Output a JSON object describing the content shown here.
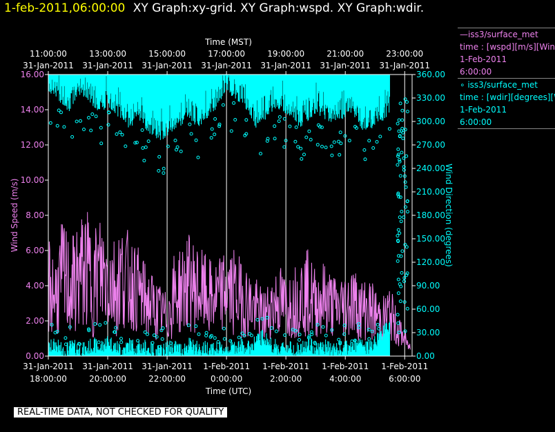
{
  "header": {
    "datetime": "1-feb-2011,06:00:00",
    "graphs": "XY Graph:xy-grid.  XY Graph:wspd.  XY Graph:wdir."
  },
  "note": "REAL-TIME DATA, NOT CHECKED FOR QUALITY",
  "legend": {
    "s1_line1": "—iss3/surface_met",
    "s1_line2": "time : [wspd][m/s][Wind",
    "s1_line3": "1-Feb-2011",
    "s1_line4": "6:00:00",
    "s2_line1": "∘ iss3/surface_met",
    "s2_line2": "time : [wdir][degrees][W",
    "s2_line3": "1-Feb-2011",
    "s2_line4": "6:00:00"
  },
  "chart_data": {
    "type": "line",
    "top_axis_label": "Time (MST)",
    "bottom_axis_label": "Time (UTC)",
    "ylabel": "Wind Speed (m/s)",
    "y2label": "Wind Direction (degrees)",
    "xlim_utc_hours": [
      18.0,
      30.25
    ],
    "ylim": [
      0,
      16
    ],
    "y2lim": [
      0,
      360
    ],
    "y_ticks": [
      "0.00",
      "2.00",
      "4.00",
      "6.00",
      "8.00",
      "10.00",
      "12.00",
      "14.00",
      "16.00"
    ],
    "y2_ticks": [
      "0.00",
      "30.00",
      "60.00",
      "90.00",
      "120.00",
      "150.00",
      "180.00",
      "210.00",
      "240.00",
      "270.00",
      "300.00",
      "330.00",
      "360.00"
    ],
    "bottom_ticks": [
      {
        "hour": 18,
        "date": "31-Jan-2011",
        "time": "18:00:00"
      },
      {
        "hour": 20,
        "date": "31-Jan-2011",
        "time": "20:00:00"
      },
      {
        "hour": 22,
        "date": "31-Jan-2011",
        "time": "22:00:00"
      },
      {
        "hour": 24,
        "date": "1-Feb-2011",
        "time": "0:00:00"
      },
      {
        "hour": 26,
        "date": "1-Feb-2011",
        "time": "2:00:00"
      },
      {
        "hour": 28,
        "date": "1-Feb-2011",
        "time": "4:00:00"
      },
      {
        "hour": 30,
        "date": "1-Feb-2011",
        "time": "6:00:00"
      }
    ],
    "top_ticks": [
      {
        "hour": 18,
        "time": "11:00:00",
        "date": "31-Jan-2011"
      },
      {
        "hour": 20,
        "time": "13:00:00",
        "date": "31-Jan-2011"
      },
      {
        "hour": 22,
        "time": "15:00:00",
        "date": "31-Jan-2011"
      },
      {
        "hour": 24,
        "time": "17:00:00",
        "date": "31-Jan-2011"
      },
      {
        "hour": 26,
        "time": "19:00:00",
        "date": "31-Jan-2011"
      },
      {
        "hour": 28,
        "time": "21:00:00",
        "date": "31-Jan-2011"
      },
      {
        "hour": 30,
        "time": "23:00:00",
        "date": "31-Jan-2011"
      }
    ],
    "grid": "vertical",
    "series": [
      {
        "name": "iss3/surface_met time : [wspd][m/s]",
        "axis": "left",
        "color": "#ee82ee",
        "style": "line",
        "x": [
          18.0,
          18.25,
          18.5,
          18.75,
          19.0,
          19.25,
          19.5,
          19.75,
          20.0,
          20.25,
          20.5,
          20.75,
          21.0,
          21.25,
          21.5,
          21.75,
          22.0,
          22.25,
          22.5,
          22.75,
          23.0,
          23.25,
          23.5,
          23.75,
          24.0,
          24.25,
          24.5,
          24.75,
          25.0,
          25.25,
          25.5,
          25.75,
          26.0,
          26.25,
          26.5,
          26.75,
          27.0,
          27.25,
          27.5,
          27.75,
          28.0,
          28.25,
          28.5,
          28.75,
          29.0,
          29.25,
          29.5,
          29.75,
          30.0,
          30.1,
          30.2
        ],
        "values": [
          4.0,
          3.5,
          4.5,
          3.8,
          4.5,
          5.0,
          4.2,
          4.8,
          4.5,
          4.0,
          4.6,
          4.2,
          3.8,
          3.2,
          2.8,
          2.5,
          2.2,
          3.5,
          3.8,
          4.2,
          3.8,
          3.5,
          3.2,
          3.4,
          3.8,
          3.6,
          3.3,
          3.0,
          2.6,
          2.2,
          2.8,
          3.2,
          2.8,
          3.0,
          3.5,
          3.6,
          3.0,
          3.3,
          3.0,
          2.7,
          3.0,
          3.2,
          2.6,
          2.7,
          2.4,
          2.0,
          2.5,
          1.5,
          1.0,
          0.6,
          0.5
        ],
        "spread": [
          3.0,
          2.5,
          3.5,
          2.8,
          3.2,
          3.5,
          3.2,
          3.5,
          3.3,
          3.0,
          3.2,
          2.8,
          2.5,
          2.2,
          2.0,
          1.6,
          1.4,
          2.5,
          2.6,
          2.8,
          2.6,
          2.4,
          2.2,
          2.2,
          2.5,
          2.5,
          2.3,
          2.0,
          1.8,
          1.6,
          1.8,
          2.2,
          1.9,
          2.0,
          2.4,
          2.5,
          2.0,
          2.2,
          2.0,
          1.8,
          2.0,
          2.1,
          1.8,
          1.8,
          1.6,
          1.4,
          1.6,
          1.0,
          0.6,
          0.3,
          0.3
        ]
      },
      {
        "name": "iss3/surface_met time : [wdir][degrees]",
        "axis": "right",
        "color": "#00ffff",
        "style": "scatter",
        "x": [
          18.0,
          18.25,
          18.5,
          18.75,
          19.0,
          19.25,
          19.5,
          19.75,
          20.0,
          20.25,
          20.5,
          20.75,
          21.0,
          21.25,
          21.5,
          21.75,
          22.0,
          22.25,
          22.5,
          22.75,
          23.0,
          23.25,
          23.5,
          23.75,
          24.0,
          24.25,
          24.5,
          24.75,
          25.0,
          25.25,
          25.5,
          25.75,
          26.0,
          26.25,
          26.5,
          26.75,
          27.0,
          27.25,
          27.5,
          27.75,
          28.0,
          28.25,
          28.5,
          28.75,
          29.0,
          29.25,
          29.5
        ],
        "upper_values": [
          345,
          340,
          330,
          320,
          345,
          335,
          330,
          320,
          330,
          320,
          310,
          300,
          315,
          300,
          290,
          285,
          290,
          300,
          305,
          315,
          300,
          310,
          320,
          330,
          345,
          340,
          330,
          320,
          300,
          310,
          320,
          325,
          320,
          315,
          300,
          310,
          320,
          315,
          305,
          310,
          315,
          320,
          300,
          295,
          305,
          310,
          320
        ],
        "lower_values": [
          10,
          15,
          5,
          12,
          10,
          8,
          15,
          10,
          20,
          12,
          8,
          15,
          10,
          12,
          8,
          5,
          10,
          12,
          8,
          15,
          10,
          10,
          12,
          8,
          10,
          12,
          15,
          10,
          20,
          25,
          15,
          10,
          12,
          10,
          8,
          15,
          10,
          12,
          10,
          8,
          10,
          12,
          15,
          10,
          20,
          30,
          40
        ]
      }
    ]
  }
}
